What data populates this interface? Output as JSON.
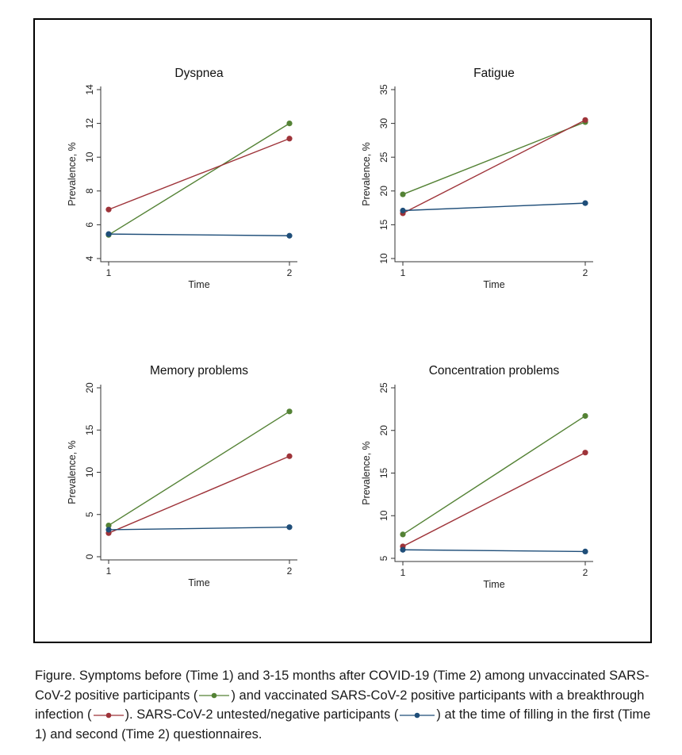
{
  "chart_data": [
    {
      "type": "line",
      "title": "Dyspnea",
      "xlabel": "Time",
      "ylabel": "Prevalence, %",
      "x": [
        1,
        2
      ],
      "ylim": [
        4,
        14
      ],
      "yticks": [
        4,
        6,
        8,
        10,
        12,
        14
      ],
      "series": [
        {
          "key": "unvaccinated",
          "color": "#548235",
          "values": [
            5.4,
            12.0
          ]
        },
        {
          "key": "vaccinated",
          "color": "#9e3339",
          "values": [
            6.9,
            11.1
          ]
        },
        {
          "key": "untested",
          "color": "#1f4e79",
          "values": [
            5.45,
            5.35
          ]
        }
      ]
    },
    {
      "type": "line",
      "title": "Fatigue",
      "xlabel": "Time",
      "ylabel": "Prevalence, %",
      "x": [
        1,
        2
      ],
      "ylim": [
        10,
        35
      ],
      "yticks": [
        10,
        15,
        20,
        25,
        30,
        35
      ],
      "series": [
        {
          "key": "unvaccinated",
          "color": "#548235",
          "values": [
            19.5,
            30.2
          ]
        },
        {
          "key": "vaccinated",
          "color": "#9e3339",
          "values": [
            16.7,
            30.5
          ]
        },
        {
          "key": "untested",
          "color": "#1f4e79",
          "values": [
            17.1,
            18.2
          ]
        }
      ]
    },
    {
      "type": "line",
      "title": "Memory problems",
      "xlabel": "Time",
      "ylabel": "Prevalence, %",
      "x": [
        1,
        2
      ],
      "ylim": [
        0,
        20
      ],
      "yticks": [
        0,
        5,
        10,
        15,
        20
      ],
      "series": [
        {
          "key": "unvaccinated",
          "color": "#548235",
          "values": [
            3.7,
            17.2
          ]
        },
        {
          "key": "vaccinated",
          "color": "#9e3339",
          "values": [
            2.8,
            11.9
          ]
        },
        {
          "key": "untested",
          "color": "#1f4e79",
          "values": [
            3.2,
            3.5
          ]
        }
      ]
    },
    {
      "type": "line",
      "title": "Concentration problems",
      "xlabel": "Time",
      "ylabel": "Prevalence, %",
      "x": [
        1,
        2
      ],
      "ylim": [
        5,
        25
      ],
      "yticks": [
        5,
        10,
        15,
        20,
        25
      ],
      "series": [
        {
          "key": "unvaccinated",
          "color": "#548235",
          "values": [
            7.8,
            21.7
          ]
        },
        {
          "key": "vaccinated",
          "color": "#9e3339",
          "values": [
            6.4,
            17.4
          ]
        },
        {
          "key": "untested",
          "color": "#1f4e79",
          "values": [
            6.0,
            5.8
          ]
        }
      ]
    }
  ],
  "caption": {
    "part1": "Figure. Symptoms before (Time 1) and 3-15 months after COVID-19 (Time 2) among unvaccinated SARS-CoV-2 positive participants (",
    "part2": ") and vaccinated SARS-CoV-2 positive participants with a breakthrough infection (",
    "part3": "). SARS-CoV-2 untested/negative participants (",
    "part4": ") at the time of filling in the first (Time 1) and second (Time 2) questionnaires."
  },
  "legend_colors": {
    "unvaccinated": "#548235",
    "vaccinated": "#9e3339",
    "untested": "#1f4e79"
  }
}
